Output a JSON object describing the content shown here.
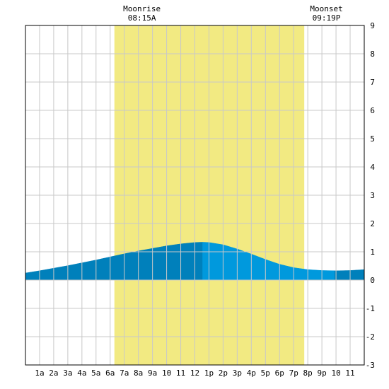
{
  "annotations": {
    "moonrise": {
      "label": "Moonrise",
      "time": "08:15A"
    },
    "moonset": {
      "label": "Moonset",
      "time": "09:19P"
    }
  },
  "colors": {
    "background": "#ffffff",
    "grid": "#c8c8c8",
    "frame": "#000000",
    "daylight": "#f2ea82",
    "tide_dark": "#0080bb",
    "tide_light": "#0099dd"
  },
  "chart_data": {
    "type": "area",
    "x_ticks": [
      "1a",
      "2a",
      "3a",
      "4a",
      "5a",
      "6a",
      "7a",
      "8a",
      "9a",
      "10",
      "11",
      "12",
      "1p",
      "2p",
      "3p",
      "4p",
      "5p",
      "6p",
      "7p",
      "8p",
      "9p",
      "10",
      "11"
    ],
    "y_ticks": [
      9,
      8,
      7,
      6,
      5,
      4,
      3,
      2,
      1,
      0,
      -1,
      -2,
      -3
    ],
    "xlim": [
      0,
      24
    ],
    "ylim": [
      -3,
      9
    ],
    "grid": true,
    "moon_up": [
      8.25,
      21.32
    ],
    "daylight": [
      6.3,
      19.75
    ],
    "series": [
      {
        "x": [
          0,
          1,
          2,
          3,
          4,
          5,
          6,
          7,
          8,
          9,
          10,
          11,
          12,
          12.5,
          13,
          14,
          15,
          16,
          17,
          18,
          19,
          20,
          21,
          22,
          23,
          24
        ],
        "values": [
          0.25,
          0.33,
          0.42,
          0.51,
          0.61,
          0.71,
          0.82,
          0.93,
          1.03,
          1.12,
          1.21,
          1.28,
          1.33,
          1.34,
          1.33,
          1.25,
          1.1,
          0.92,
          0.73,
          0.56,
          0.44,
          0.37,
          0.34,
          0.33,
          0.34,
          0.37
        ]
      }
    ],
    "shading_bands": [
      {
        "x": [
          0,
          12.55
        ],
        "color": "#0080bb"
      },
      {
        "x": [
          12.55,
          21.9
        ],
        "color": "#0099dd"
      },
      {
        "x": [
          21.9,
          24
        ],
        "color": "#0080bb"
      }
    ]
  }
}
